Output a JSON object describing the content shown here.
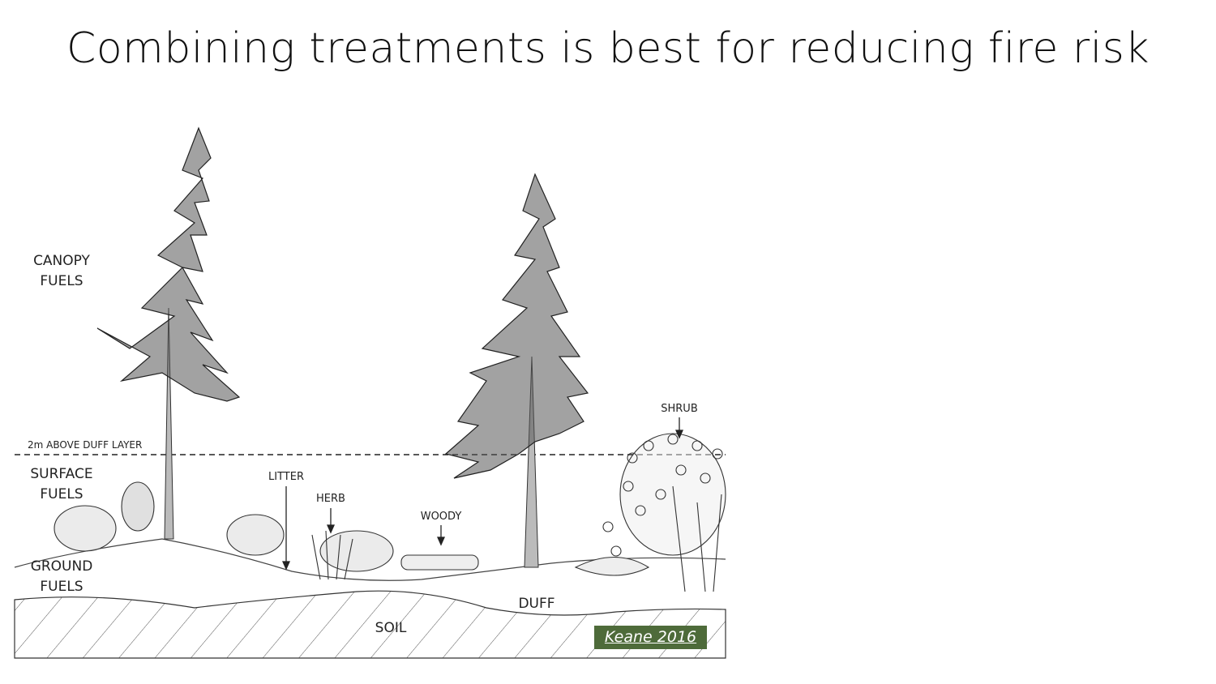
{
  "slide": {
    "title": "Combining treatments is best for reducing fire risk"
  },
  "diagram": {
    "labels": {
      "canopy": "CANOPY\nFUELS",
      "above_duff": "2m ABOVE DUFF LAYER",
      "surface": "SURFACE\nFUELS",
      "ground": "GROUND\nFUELS",
      "litter": "LITTER",
      "herb": "HERB",
      "woody": "WOODY",
      "shrub": "SHRUB",
      "duff": "DUFF",
      "soil": "SOIL"
    },
    "citation": "Keane 2016"
  },
  "colors": {
    "citation_bg": "#4e6b3a",
    "ink": "#222222"
  }
}
